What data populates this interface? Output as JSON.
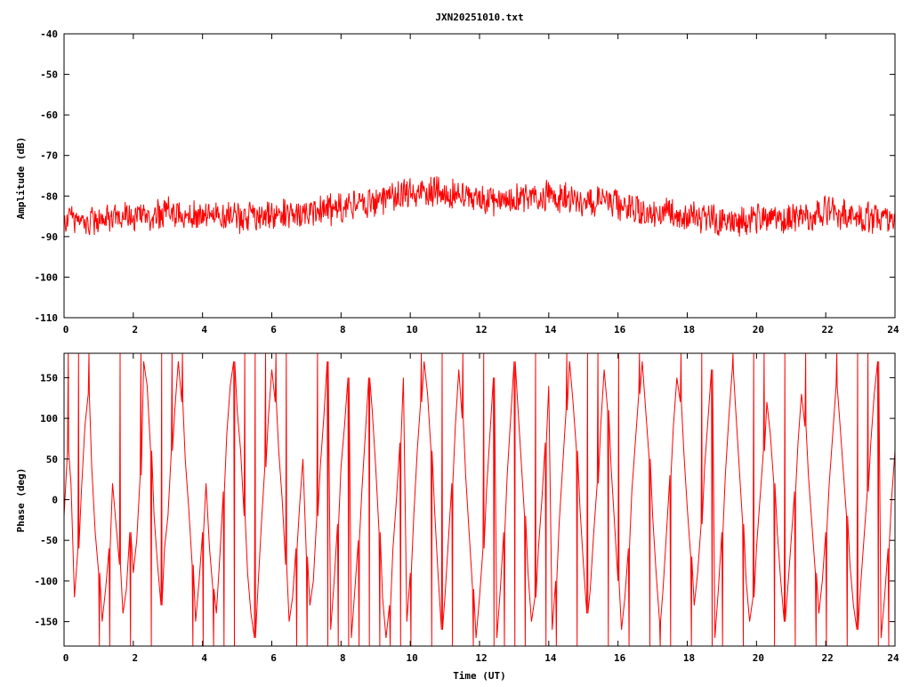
{
  "chart_data": [
    {
      "type": "line",
      "title": "JXN20251010.txt",
      "xlabel": "",
      "ylabel": "Amplitude (dB)",
      "xlim": [
        0,
        24
      ],
      "ylim": [
        -110,
        -40
      ],
      "xticks": [
        0,
        2,
        4,
        6,
        8,
        10,
        12,
        14,
        16,
        18,
        20,
        22,
        24
      ],
      "yticks": [
        -40,
        -50,
        -60,
        -70,
        -80,
        -90,
        -100,
        -110
      ],
      "grid": false,
      "color": "#ff0000",
      "series": [
        {
          "name": "amplitude",
          "x": [
            0,
            1,
            2,
            3,
            4,
            5,
            6,
            7,
            8,
            9,
            10,
            11,
            12,
            13,
            14,
            15,
            16,
            17,
            18,
            19,
            20,
            21,
            22,
            23,
            24
          ],
          "mean": [
            -86,
            -86,
            -85,
            -84,
            -85,
            -85,
            -85,
            -84,
            -83,
            -81,
            -79,
            -79,
            -81,
            -81,
            -80,
            -81,
            -82,
            -84,
            -85,
            -86,
            -86,
            -86,
            -84,
            -85,
            -86
          ],
          "noise_db": 4.5
        }
      ]
    },
    {
      "type": "line",
      "title": "",
      "xlabel": "Time (UT)",
      "ylabel": "Phase (deg)",
      "xlim": [
        0,
        24
      ],
      "ylim": [
        -180,
        180
      ],
      "xticks": [
        0,
        2,
        4,
        6,
        8,
        10,
        12,
        14,
        16,
        18,
        20,
        22,
        24
      ],
      "yticks": [
        150,
        100,
        50,
        0,
        -50,
        -100,
        -150
      ],
      "grid": false,
      "color": "#ff0000",
      "series": [
        {
          "name": "phase",
          "x_step": 0.1,
          "values": [
            -20,
            60,
            20,
            -120,
            -60,
            10,
            90,
            130,
            40,
            -40,
            -90,
            -150,
            -110,
            -60,
            20,
            -30,
            -80,
            -140,
            -110,
            -40,
            -90,
            -50,
            30,
            170,
            140,
            60,
            -20,
            -80,
            -130,
            -60,
            -20,
            60,
            110,
            170,
            120,
            50,
            -10,
            -80,
            -150,
            -100,
            -40,
            20,
            -60,
            -110,
            -140,
            -70,
            10,
            80,
            140,
            170,
            110,
            60,
            -20,
            -90,
            -140,
            -170,
            -110,
            -30,
            40,
            100,
            160,
            120,
            60,
            0,
            -80,
            -150,
            -120,
            -60,
            -10,
            50,
            -70,
            -130,
            -100,
            -20,
            40,
            100,
            170,
            -160,
            -100,
            -30,
            40,
            90,
            150,
            -170,
            -110,
            -50,
            10,
            80,
            150,
            110,
            40,
            -40,
            -120,
            -170,
            -130,
            -60,
            0,
            70,
            150,
            -150,
            -90,
            -20,
            60,
            120,
            170,
            130,
            60,
            -10,
            -90,
            -160,
            -120,
            -50,
            20,
            90,
            160,
            100,
            30,
            -40,
            -110,
            -170,
            -120,
            -60,
            10,
            80,
            150,
            -170,
            -110,
            -40,
            30,
            100,
            170,
            120,
            50,
            -20,
            -90,
            -150,
            -120,
            -60,
            0,
            70,
            140,
            -160,
            -100,
            -30,
            40,
            110,
            170,
            120,
            60,
            -10,
            -80,
            -140,
            -110,
            -40,
            20,
            90,
            160,
            110,
            40,
            -30,
            -100,
            -160,
            -120,
            -60,
            10,
            70,
            130,
            170,
            110,
            50,
            -20,
            -90,
            -150,
            -110,
            -40,
            30,
            90,
            150,
            120,
            60,
            -10,
            -70,
            -130,
            -90,
            -30,
            40,
            100,
            160,
            -170,
            -110,
            -40,
            30,
            100,
            160,
            110,
            40,
            -30,
            -100,
            -150,
            -120,
            -60,
            0,
            60,
            120,
            80,
            20,
            -40,
            -100,
            -150,
            -110,
            -50,
            10,
            70,
            130,
            90,
            30,
            -30,
            -90,
            -140,
            -100,
            -40,
            20,
            80,
            140,
            100,
            40,
            -20,
            -80,
            -130,
            -160,
            -110,
            -50,
            10,
            70,
            130,
            170,
            -170,
            -120,
            -60,
            0,
            60,
            120,
            50
          ]
        }
      ]
    }
  ]
}
